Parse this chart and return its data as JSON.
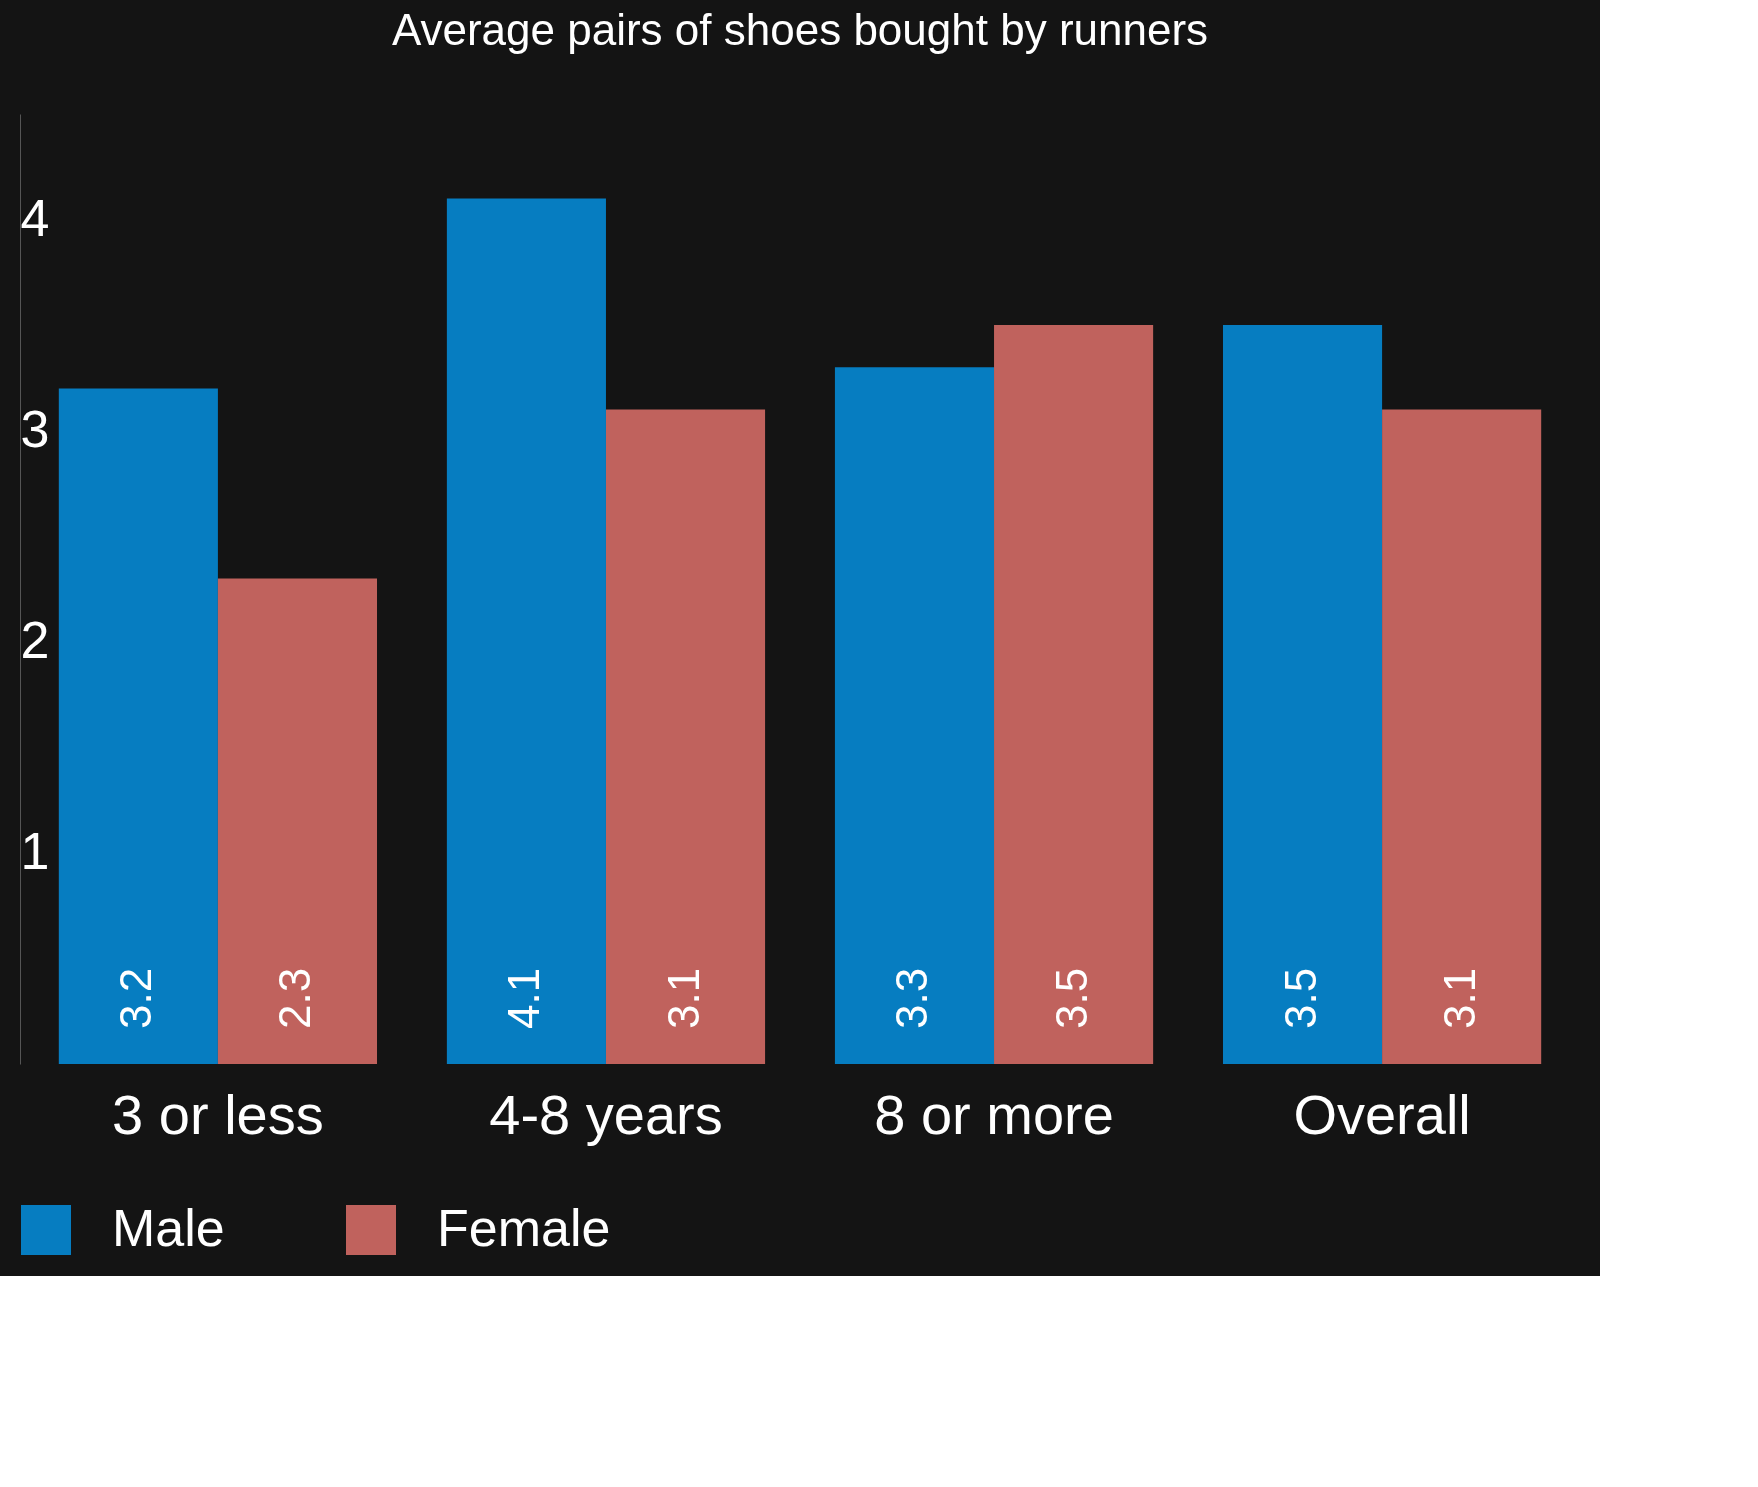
{
  "chart_data": {
    "type": "bar",
    "title": "Average pairs of shoes bought by runners",
    "categories": [
      "3 or less",
      "4-8 years",
      "8 or more",
      "Overall"
    ],
    "series": [
      {
        "name": "Male",
        "color": "#067dc1",
        "values": [
          3.2,
          4.1,
          3.3,
          3.5
        ]
      },
      {
        "name": "Female",
        "color": "#c0625d",
        "values": [
          2.3,
          3.1,
          3.5,
          3.1
        ]
      }
    ],
    "ylim": [
      0,
      4.5
    ],
    "yticks": [
      1,
      2,
      3,
      4
    ],
    "grid": false,
    "legend": "bottom",
    "data_labels": true
  }
}
